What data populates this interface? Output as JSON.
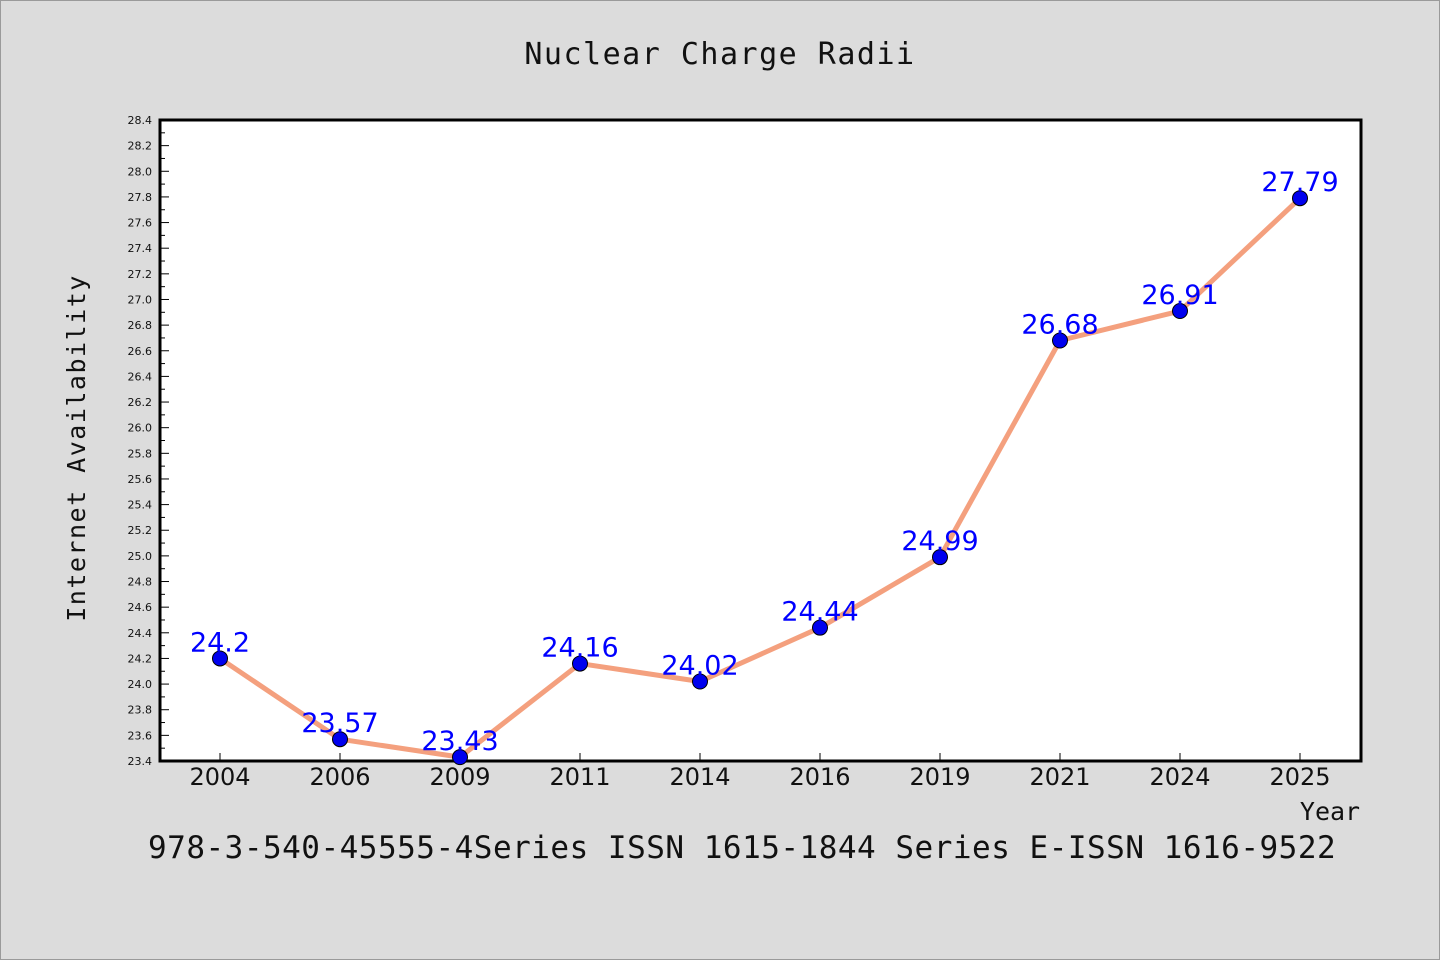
{
  "chart_data": {
    "type": "line",
    "title": "Nuclear Charge Radii",
    "xlabel": "Year",
    "ylabel": "Internet Availability",
    "categories": [
      "2004",
      "2006",
      "2009",
      "2011",
      "2014",
      "2016",
      "2019",
      "2021",
      "2024",
      "2025"
    ],
    "values": [
      24.2,
      23.57,
      23.43,
      24.16,
      24.02,
      24.44,
      24.99,
      26.68,
      26.91,
      27.79
    ],
    "data_labels": [
      "24.2",
      "23.57",
      "23.43",
      "24.16",
      "24.02",
      "24.44",
      "24.99",
      "26.68",
      "26.91",
      "27.79"
    ],
    "ylim": [
      23.4,
      28.4
    ],
    "yticks": [
      "23.4",
      "23.6",
      "23.8",
      "24.0",
      "24.2",
      "24.4",
      "24.6",
      "24.8",
      "25.0",
      "25.2",
      "25.4",
      "25.6",
      "25.8",
      "26.0",
      "26.2",
      "26.4",
      "26.6",
      "26.8",
      "27.0",
      "27.2",
      "27.4",
      "27.6",
      "27.8",
      "28.0",
      "28.2",
      "28.4"
    ],
    "line_color": "#f4a07e",
    "marker_color": "#0000ee",
    "label_color": "#0000ff",
    "grid": false,
    "legend": "none"
  },
  "footer": {
    "text": "978-3-540-45555-4Series ISSN 1615-1844 Series E-ISSN 1616-9522"
  }
}
